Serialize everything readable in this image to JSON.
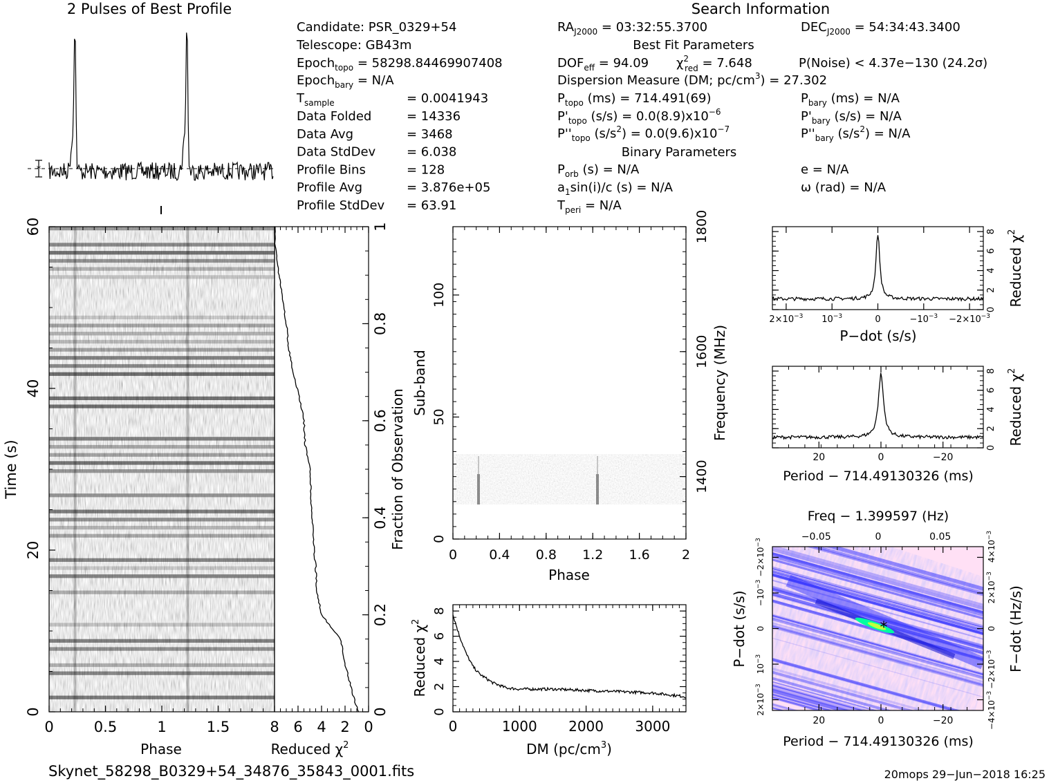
{
  "header": {
    "title_left": "2 Pulses of Best Profile",
    "title_right": "Search Information",
    "best_fit": "Best Fit Parameters",
    "binary": "Binary Parameters"
  },
  "info": {
    "candidate": "Candidate:  PSR_0329+54",
    "telescope": "Telescope:  GB43m",
    "epoch_topo": "Epoch",
    "epoch_topo_sub": "topo",
    "epoch_topo_val": " = 58298.84469907408",
    "epoch_bary": "Epoch",
    "epoch_bary_sub": "bary",
    "epoch_bary_val": " = N/A",
    "tsample": "T",
    "tsample_sub": "sample",
    "tsample_val": "=   0.0041943",
    "rows": [
      {
        "k": "Data Folded",
        "v": "=   14336"
      },
      {
        "k": "Data Avg",
        "v": "=   3468"
      },
      {
        "k": "Data StdDev",
        "v": "=   6.038"
      },
      {
        "k": "Profile Bins",
        "v": "=   128"
      },
      {
        "k": "Profile Avg",
        "v": "=   3.876e+05"
      },
      {
        "k": "Profile StdDev",
        "v": "=   63.91"
      }
    ],
    "ra": "RA",
    "ra_sub": "J2000",
    "ra_val": " = 03:32:55.3700",
    "dec": "DEC",
    "dec_sub": "J2000",
    "dec_val": " = 54:34:43.3400",
    "dof": "DOF",
    "dof_sub": "eff",
    "dof_val": " = 94.09",
    "chi": "χ",
    "chi_sup": "2",
    "chi_sub": "red",
    "chi_val": " = 7.648",
    "pnoise": "P(Noise) < 4.37e−130  (24.2σ)",
    "dm_line": "Dispersion Measure (DM; pc/cm",
    "dm_sup": "3",
    "dm_val": ") = 27.302",
    "ptopo": "P",
    "ptopo_sub": "topo",
    "ptopo_val": " (ms) =  714.491(69)",
    "pdtopo": "P'",
    "pdtopo_sub": "topo",
    "pdtopo_val": " (s/s) = 0.0(8.9)x10",
    "pdtopo_exp": "−6",
    "pddtopo": "P''",
    "pddtopo_sub": "topo",
    "pddtopo_val": " (s/s",
    "pddtopo_sup": "2",
    "pddtopo_val2": ") = 0.0(9.6)x10",
    "pddtopo_exp": "−7",
    "pbary": "P",
    "pbary_sub": "bary",
    "pbary_val": " (ms) = N/A",
    "pdbary": "P'",
    "pdbary_sub": "bary",
    "pdbary_val": " (s/s) = N/A",
    "pddbary": "P''",
    "pddbary_sub": "bary",
    "pddbary_val": " (s/s",
    "pddbary_sup": "2",
    "pddbary_val2": ") = N/A",
    "porb": "P",
    "porb_sub": "orb",
    "porb_val": " (s) = N/A",
    "asini": "a",
    "asini_sub": "1",
    "asini_val": "sin(i)/c (s) = N/A",
    "tperi": "T",
    "tperi_sub": "peri",
    "tperi_val": " = N/A",
    "ecc": "e = N/A",
    "omega": "ω (rad) = N/A"
  },
  "colors": {
    "axis": "#000000",
    "dpp_low": "#ffe0f5",
    "dpp_mid": "#3030ff",
    "dpp_peak": "#00ffa0"
  },
  "chart_data": [
    {
      "id": "profile",
      "type": "line",
      "title": "2 Pulses of Best Profile",
      "x_range": [
        0,
        2
      ],
      "peaks_at_phase": [
        0.23,
        1.23
      ],
      "error_bar_marker": true
    },
    {
      "id": "time_phase",
      "type": "heatmap",
      "xlabel": "Phase",
      "ylabel": "Time (s)",
      "x_ticks": [
        "0",
        "0.5",
        "1",
        "1.5"
      ],
      "y_ticks": [
        "0",
        "20",
        "40",
        "60"
      ],
      "xlim": [
        0,
        2
      ],
      "ylim": [
        0,
        60
      ]
    },
    {
      "id": "chi_vs_time",
      "type": "line",
      "xlabel": "Reduced χ",
      "xlabel_sup": "2",
      "ylabel_right": "Fraction of Observation",
      "x_ticks": [
        "8",
        "6",
        "4",
        "2",
        "0"
      ],
      "y_ticks": [
        "0",
        "0.2",
        "0.4",
        "0.6",
        "0.8",
        "1"
      ],
      "xlim": [
        8,
        0
      ],
      "ylim": [
        0,
        1
      ],
      "fraction": [
        0,
        0.05,
        0.1,
        0.15,
        0.2,
        0.25,
        0.3,
        0.35,
        0.4,
        0.45,
        0.5,
        0.55,
        0.6,
        0.65,
        0.7,
        0.75,
        0.8,
        0.85,
        0.9,
        0.95,
        1.0
      ],
      "chi2": [
        0.9,
        1.5,
        2.0,
        2.4,
        4.0,
        4.4,
        4.5,
        4.7,
        4.8,
        4.9,
        5.0,
        5.4,
        5.5,
        5.9,
        6.4,
        6.8,
        7.0,
        7.3,
        7.6,
        7.9,
        8.0
      ]
    },
    {
      "id": "subband_phase",
      "type": "heatmap",
      "xlabel": "Phase",
      "ylabel": "Sub-band",
      "ylabel_right": "Frequency (MHz)",
      "x_ticks": [
        "0",
        "0.4",
        "0.8",
        "1.2",
        "1.6",
        "2"
      ],
      "y_ticks": [
        "0",
        "50",
        "100"
      ],
      "y_ticks_right": [
        "1400",
        "1600",
        "1800"
      ],
      "xlim": [
        0,
        2
      ],
      "ylim": [
        0,
        128
      ],
      "freq_range": [
        1300,
        1800
      ],
      "data_subbands": [
        14,
        35
      ],
      "pulse_phase": [
        0.23,
        1.23
      ]
    },
    {
      "id": "chi_vs_dm",
      "type": "line",
      "xlabel": "DM (pc/cm",
      "xlabel_sup": "3",
      "xlabel_end": ")",
      "ylabel": "Reduced χ",
      "ylabel_sup": "2",
      "x_ticks": [
        "0",
        "1000",
        "2000",
        "3000"
      ],
      "y_ticks": [
        "0",
        "2",
        "4",
        "6",
        "8"
      ],
      "xlim": [
        0,
        3500
      ],
      "ylim": [
        0,
        8.5
      ],
      "x": [
        0,
        100,
        200,
        300,
        400,
        600,
        800,
        1000,
        1200,
        1500,
        2000,
        2500,
        3000,
        3500
      ],
      "y": [
        7.7,
        6.0,
        4.6,
        3.6,
        3.0,
        2.3,
        1.9,
        1.8,
        1.8,
        1.8,
        1.7,
        1.6,
        1.5,
        1.2
      ]
    },
    {
      "id": "chi_vs_pdot",
      "type": "line",
      "xlabel": "P−dot (s/s)",
      "ylabel_right": "Reduced χ",
      "ylabel_sup": "2",
      "x_ticks": [
        "2×10",
        "10",
        "0",
        "−10",
        "−2×10"
      ],
      "x_tick_exp": "−3",
      "y_ticks": [
        "0",
        "2",
        "4",
        "6",
        "8"
      ],
      "xlim": [
        0.0023,
        -0.0023
      ],
      "ylim": [
        0,
        8.5
      ],
      "peak_at": 0,
      "peak_value": 7.8,
      "baseline": 1.1
    },
    {
      "id": "chi_vs_period",
      "type": "line",
      "xlabel": "Period − 714.49130326 (ms)",
      "ylabel_right": "Reduced χ",
      "ylabel_sup": "2",
      "x_ticks": [
        "20",
        "0",
        "−20"
      ],
      "y_ticks": [
        "0",
        "2",
        "4",
        "6",
        "8"
      ],
      "xlim": [
        35,
        -33
      ],
      "ylim": [
        0,
        8.5
      ],
      "peak_at": 0,
      "peak_value": 7.7,
      "baseline": 1.1
    },
    {
      "id": "pdot_vs_period",
      "type": "heatmap",
      "title": "Freq − 1.399597 (Hz)",
      "xlabel": "Period − 714.49130326 (ms)",
      "ylabel": "P−dot (s/s)",
      "ylabel_right": "F−dot (Hz/s)",
      "x_ticks": [
        "20",
        "0",
        "−20"
      ],
      "x_ticks_top": [
        "−0.05",
        "0",
        "0.05"
      ],
      "y_ticks": [
        "2×10",
        "10",
        "0",
        "−10",
        "−2×10"
      ],
      "y_tick_exp": "−3",
      "y_ticks_right": [
        "−4×10",
        "−2×10",
        "0",
        "2×10",
        "4×10"
      ],
      "y_tick_right_exp": "−3",
      "xlim": [
        35,
        -33
      ],
      "ylim": [
        0.0023,
        -0.0023
      ],
      "best": [
        0,
        0
      ]
    }
  ],
  "footer": {
    "filename": "Skynet_58298_B0329+54_34876_35843_0001.fits",
    "stamp": "20mops 29−Jun−2018 16:25"
  }
}
